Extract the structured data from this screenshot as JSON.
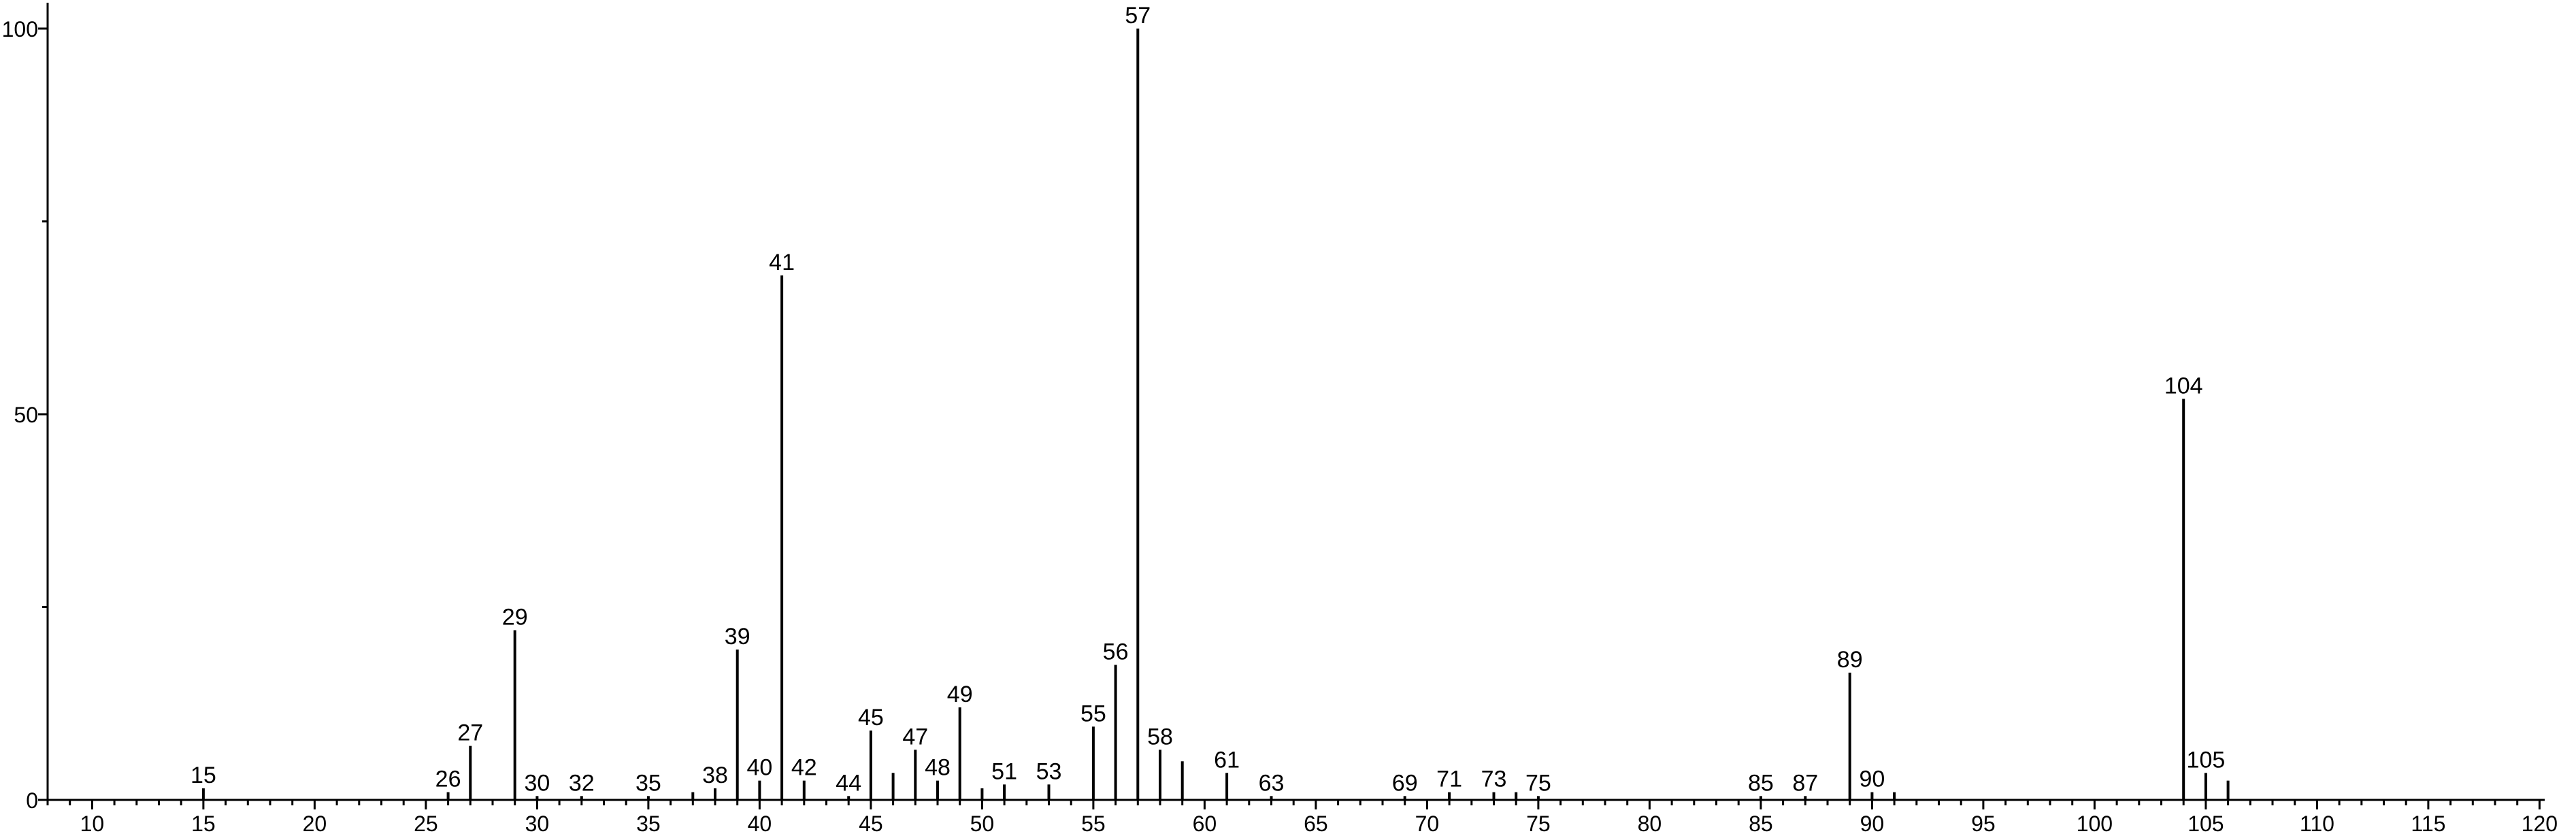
{
  "chart_data": {
    "type": "bar",
    "title": "",
    "xlabel": "",
    "ylabel": "",
    "xlim": [
      8,
      121
    ],
    "ylim": [
      0,
      100
    ],
    "grid": false,
    "xticks": [
      10,
      15,
      20,
      25,
      30,
      35,
      40,
      45,
      50,
      55,
      60,
      65,
      70,
      75,
      80,
      85,
      90,
      95,
      100,
      105,
      110,
      115,
      120
    ],
    "yticks": [
      0,
      50,
      100
    ],
    "peaks": [
      {
        "x": 15,
        "y": 1.5,
        "label": "15"
      },
      {
        "x": 26,
        "y": 1.0,
        "label": "26"
      },
      {
        "x": 27,
        "y": 7.0,
        "label": "27"
      },
      {
        "x": 29,
        "y": 22.0,
        "label": "29"
      },
      {
        "x": 30,
        "y": 0.5,
        "label": "30"
      },
      {
        "x": 32,
        "y": 0.5,
        "label": "32"
      },
      {
        "x": 35,
        "y": 0.5,
        "label": "35"
      },
      {
        "x": 37,
        "y": 1.0,
        "label": ""
      },
      {
        "x": 38,
        "y": 1.5,
        "label": "38"
      },
      {
        "x": 39,
        "y": 19.5,
        "label": "39"
      },
      {
        "x": 40,
        "y": 2.5,
        "label": "40"
      },
      {
        "x": 41,
        "y": 68.0,
        "label": "41"
      },
      {
        "x": 42,
        "y": 2.5,
        "label": "42"
      },
      {
        "x": 44,
        "y": 0.5,
        "label": "44"
      },
      {
        "x": 45,
        "y": 9.0,
        "label": "45"
      },
      {
        "x": 46,
        "y": 3.5,
        "label": ""
      },
      {
        "x": 47,
        "y": 6.5,
        "label": "47"
      },
      {
        "x": 48,
        "y": 2.5,
        "label": "48"
      },
      {
        "x": 49,
        "y": 12.0,
        "label": "49"
      },
      {
        "x": 50,
        "y": 1.5,
        "label": ""
      },
      {
        "x": 51,
        "y": 2.0,
        "label": "51"
      },
      {
        "x": 53,
        "y": 2.0,
        "label": "53"
      },
      {
        "x": 55,
        "y": 9.5,
        "label": "55"
      },
      {
        "x": 56,
        "y": 17.5,
        "label": "56"
      },
      {
        "x": 57,
        "y": 100.0,
        "label": "57"
      },
      {
        "x": 58,
        "y": 6.5,
        "label": "58"
      },
      {
        "x": 59,
        "y": 5.0,
        "label": ""
      },
      {
        "x": 61,
        "y": 3.5,
        "label": "61"
      },
      {
        "x": 63,
        "y": 0.5,
        "label": "63"
      },
      {
        "x": 69,
        "y": 0.5,
        "label": "69"
      },
      {
        "x": 71,
        "y": 1.0,
        "label": "71"
      },
      {
        "x": 73,
        "y": 1.0,
        "label": "73"
      },
      {
        "x": 74,
        "y": 1.0,
        "label": ""
      },
      {
        "x": 75,
        "y": 0.5,
        "label": "75"
      },
      {
        "x": 85,
        "y": 0.5,
        "label": "85"
      },
      {
        "x": 87,
        "y": 0.5,
        "label": "87"
      },
      {
        "x": 89,
        "y": 16.5,
        "label": "89"
      },
      {
        "x": 90,
        "y": 1.0,
        "label": "90"
      },
      {
        "x": 91,
        "y": 1.0,
        "label": ""
      },
      {
        "x": 104,
        "y": 52.0,
        "label": "104"
      },
      {
        "x": 105,
        "y": 3.5,
        "label": "105"
      },
      {
        "x": 106,
        "y": 2.5,
        "label": ""
      }
    ]
  }
}
